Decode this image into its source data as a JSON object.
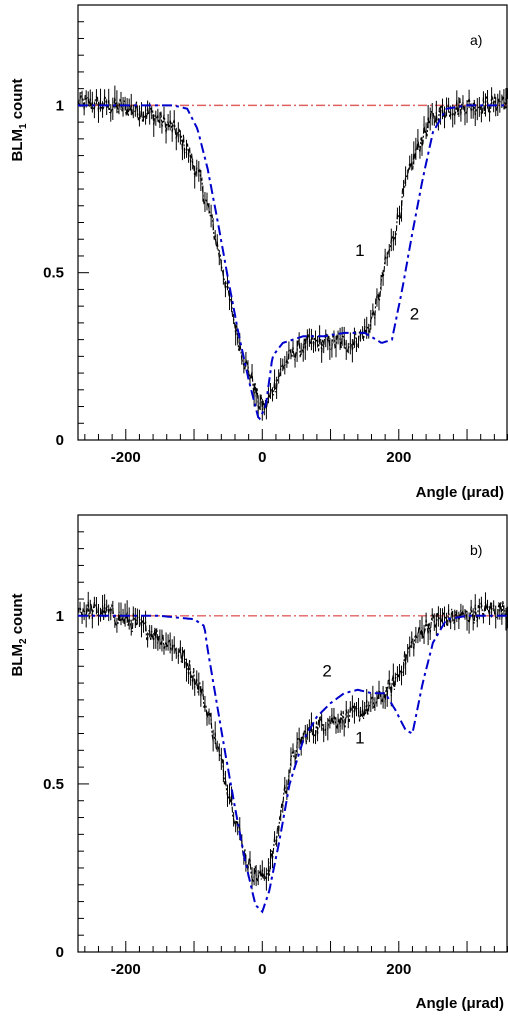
{
  "chart_data": [
    {
      "type": "line",
      "panel_label": "a)",
      "ylabel_main": "BLM",
      "ylabel_sub": "1",
      "ylabel_rest": " count",
      "xlabel": "Angle  (μrad)",
      "xlim": [
        -270,
        360
      ],
      "ylim": [
        0,
        1.3
      ],
      "x_ticks": [
        -200,
        0,
        200
      ],
      "x_tick_labels": [
        "-200",
        "0",
        "200"
      ],
      "y_ticks": [
        0,
        0.5,
        1
      ],
      "y_tick_labels": [
        "0",
        "0.5",
        "1"
      ],
      "reference_line": {
        "y": 1.0,
        "color": "#e06060"
      },
      "series": [
        {
          "name": "1",
          "color": "#000000",
          "style": "data-noisy",
          "x": [
            -270,
            -230,
            -190,
            -160,
            -130,
            -110,
            -90,
            -75,
            -60,
            -45,
            -35,
            -25,
            -15,
            -5,
            5,
            15,
            30,
            50,
            70,
            100,
            130,
            155,
            170,
            180,
            195,
            210,
            225,
            245,
            270,
            300,
            330,
            360
          ],
          "y": [
            1.01,
            1.0,
            0.99,
            0.97,
            0.93,
            0.87,
            0.77,
            0.66,
            0.53,
            0.39,
            0.3,
            0.23,
            0.18,
            0.11,
            0.1,
            0.15,
            0.22,
            0.27,
            0.29,
            0.29,
            0.29,
            0.33,
            0.42,
            0.52,
            0.63,
            0.76,
            0.86,
            0.95,
            0.99,
            1.0,
            1.0,
            1.02
          ]
        },
        {
          "name": "2",
          "color": "#0000cc",
          "style": "dash-dot",
          "x": [
            -270,
            -200,
            -130,
            -110,
            -95,
            -80,
            -65,
            -50,
            -35,
            -20,
            -5,
            5,
            15,
            30,
            60,
            90,
            120,
            150,
            175,
            190,
            205,
            220,
            235,
            250,
            270,
            300,
            360
          ],
          "y": [
            1.0,
            1.0,
            1.0,
            0.99,
            0.93,
            0.81,
            0.65,
            0.48,
            0.32,
            0.18,
            0.06,
            0.1,
            0.25,
            0.29,
            0.31,
            0.31,
            0.32,
            0.32,
            0.29,
            0.3,
            0.45,
            0.62,
            0.78,
            0.92,
            0.99,
            1.0,
            1.0
          ]
        }
      ],
      "curve_labels": [
        {
          "text": "1",
          "x": 143,
          "y": 0.55
        },
        {
          "text": "2",
          "x": 223,
          "y": 0.36
        }
      ]
    },
    {
      "type": "line",
      "panel_label": "b)",
      "ylabel_main": "BLM",
      "ylabel_sub": "2",
      "ylabel_rest": " count",
      "xlabel": "Angle  (μrad)",
      "xlim": [
        -270,
        360
      ],
      "ylim": [
        0,
        1.3
      ],
      "x_ticks": [
        -200,
        0,
        200
      ],
      "x_tick_labels": [
        "-200",
        "0",
        "200"
      ],
      "y_ticks": [
        0,
        0.5,
        1
      ],
      "y_tick_labels": [
        "0",
        "0.5",
        "1"
      ],
      "reference_line": {
        "y": 1.0,
        "color": "#e06060"
      },
      "series": [
        {
          "name": "1",
          "color": "#000000",
          "style": "data-noisy",
          "x": [
            -270,
            -230,
            -190,
            -160,
            -130,
            -110,
            -90,
            -75,
            -60,
            -45,
            -30,
            -20,
            -10,
            0,
            10,
            20,
            30,
            45,
            60,
            80,
            100,
            130,
            160,
            175,
            190,
            205,
            220,
            240,
            260,
            300,
            330,
            360
          ],
          "y": [
            1.02,
            1.01,
            0.98,
            0.95,
            0.91,
            0.86,
            0.78,
            0.68,
            0.56,
            0.45,
            0.32,
            0.26,
            0.23,
            0.22,
            0.25,
            0.33,
            0.45,
            0.58,
            0.64,
            0.67,
            0.69,
            0.7,
            0.73,
            0.76,
            0.79,
            0.85,
            0.92,
            0.97,
            0.99,
            1.0,
            1.02,
            1.02
          ]
        },
        {
          "name": "2",
          "color": "#0000cc",
          "style": "dash-dot",
          "x": [
            -270,
            -200,
            -150,
            -100,
            -85,
            -80,
            -70,
            -55,
            -40,
            -25,
            -10,
            0,
            10,
            25,
            40,
            60,
            80,
            100,
            120,
            140,
            160,
            180,
            195,
            210,
            220,
            235,
            250,
            270,
            300,
            360
          ],
          "y": [
            1.0,
            1.0,
            1.0,
            0.99,
            0.97,
            0.9,
            0.78,
            0.6,
            0.43,
            0.27,
            0.14,
            0.12,
            0.18,
            0.33,
            0.5,
            0.63,
            0.7,
            0.74,
            0.77,
            0.78,
            0.77,
            0.77,
            0.72,
            0.66,
            0.65,
            0.8,
            0.92,
            0.99,
            1.0,
            1.0
          ]
        }
      ],
      "curve_labels": [
        {
          "text": "2",
          "x": 95,
          "y": 0.82
        },
        {
          "text": "1",
          "x": 143,
          "y": 0.62
        }
      ]
    }
  ]
}
